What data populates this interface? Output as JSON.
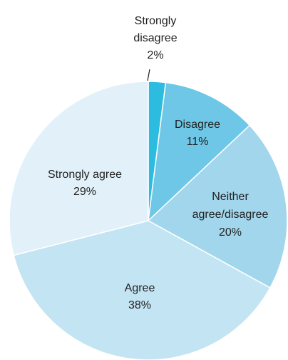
{
  "chart_data": {
    "type": "pie",
    "title": "",
    "slices": [
      {
        "name": "Strongly disagree",
        "label_lines": [
          "Strongly",
          "disagree"
        ],
        "value": 2,
        "value_label": "2%",
        "color": "#2bbcdf"
      },
      {
        "name": "Disagree",
        "label_lines": [
          "Disagree"
        ],
        "value": 11,
        "value_label": "11%",
        "color": "#6ec7e6"
      },
      {
        "name": "Neither agree/disagree",
        "label_lines": [
          "Neither",
          "agree/disagree"
        ],
        "value": 20,
        "value_label": "20%",
        "color": "#a2d6ec"
      },
      {
        "name": "Agree",
        "label_lines": [
          "Agree"
        ],
        "value": 38,
        "value_label": "38%",
        "color": "#c3e4f2"
      },
      {
        "name": "Strongly agree",
        "label_lines": [
          "Strongly agree"
        ],
        "value": 29,
        "value_label": "29%",
        "color": "#e2f1f9"
      }
    ],
    "start_angle_deg": 0,
    "direction": "clockwise",
    "legend": "none",
    "labels": "inside, except smallest slice labeled above with leader line"
  }
}
